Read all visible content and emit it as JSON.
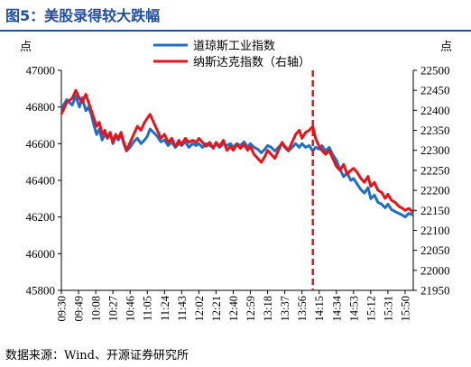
{
  "title": "图5：美股录得较大跌幅",
  "source": "数据来源：Wind、开源证券研究所",
  "chart_data": {
    "type": "line",
    "left_axis_unit": "点",
    "right_axis_unit": "点",
    "left_ylim": [
      45800,
      47000
    ],
    "right_ylim": [
      21950,
      22500
    ],
    "left_ticks": [
      "47000",
      "46800",
      "46600",
      "46400",
      "46200",
      "46000",
      "45800"
    ],
    "left_tick_values": [
      47000,
      46800,
      46600,
      46400,
      46200,
      46000,
      45800
    ],
    "right_ticks": [
      "22500",
      "22450",
      "22400",
      "22350",
      "22300",
      "22250",
      "22200",
      "22150",
      "22100",
      "22050",
      "22000",
      "21950"
    ],
    "right_tick_values": [
      22500,
      22450,
      22400,
      22350,
      22300,
      22250,
      22200,
      22150,
      22100,
      22050,
      22000,
      21950
    ],
    "x_tick_labels": [
      "09:30",
      "09:49",
      "10:08",
      "10:27",
      "10:46",
      "11:05",
      "11:24",
      "11:43",
      "12:02",
      "12:21",
      "12:40",
      "12:59",
      "13:18",
      "13:37",
      "13:56",
      "14:15",
      "14:34",
      "14:53",
      "15:12",
      "15:31",
      "15:50"
    ],
    "x_range": [
      "09:30",
      "15:59"
    ],
    "marker_time": "14:08",
    "series": [
      {
        "name": "道琼斯工业指数",
        "axis": "left",
        "color": "#1F6FC5",
        "points": [
          [
            "09:30",
            46790
          ],
          [
            "09:36",
            46840
          ],
          [
            "09:42",
            46810
          ],
          [
            "09:46",
            46860
          ],
          [
            "09:50",
            46800
          ],
          [
            "09:53",
            46850
          ],
          [
            "09:57",
            46780
          ],
          [
            "10:00",
            46800
          ],
          [
            "10:03",
            46760
          ],
          [
            "10:06",
            46700
          ],
          [
            "10:09",
            46650
          ],
          [
            "10:12",
            46680
          ],
          [
            "10:15",
            46620
          ],
          [
            "10:18",
            46650
          ],
          [
            "10:21",
            46630
          ],
          [
            "10:24",
            46660
          ],
          [
            "10:27",
            46600
          ],
          [
            "10:30",
            46640
          ],
          [
            "10:33",
            46620
          ],
          [
            "10:36",
            46650
          ],
          [
            "10:39",
            46600
          ],
          [
            "10:42",
            46560
          ],
          [
            "10:46",
            46580
          ],
          [
            "10:50",
            46610
          ],
          [
            "10:54",
            46630
          ],
          [
            "10:58",
            46600
          ],
          [
            "11:02",
            46620
          ],
          [
            "11:05",
            46640
          ],
          [
            "11:08",
            46680
          ],
          [
            "11:12",
            46660
          ],
          [
            "11:16",
            46640
          ],
          [
            "11:20",
            46610
          ],
          [
            "11:24",
            46620
          ],
          [
            "11:28",
            46590
          ],
          [
            "11:32",
            46610
          ],
          [
            "11:36",
            46580
          ],
          [
            "11:40",
            46600
          ],
          [
            "11:43",
            46590
          ],
          [
            "11:47",
            46610
          ],
          [
            "11:51",
            46580
          ],
          [
            "11:55",
            46600
          ],
          [
            "11:59",
            46590
          ],
          [
            "12:02",
            46600
          ],
          [
            "12:06",
            46580
          ],
          [
            "12:10",
            46600
          ],
          [
            "12:14",
            46590
          ],
          [
            "12:18",
            46580
          ],
          [
            "12:21",
            46600
          ],
          [
            "12:25",
            46580
          ],
          [
            "12:29",
            46600
          ],
          [
            "12:33",
            46590
          ],
          [
            "12:37",
            46600
          ],
          [
            "12:40",
            46580
          ],
          [
            "12:44",
            46600
          ],
          [
            "12:48",
            46590
          ],
          [
            "12:52",
            46610
          ],
          [
            "12:56",
            46580
          ],
          [
            "12:59",
            46600
          ],
          [
            "13:03",
            46580
          ],
          [
            "13:07",
            46570
          ],
          [
            "13:11",
            46550
          ],
          [
            "13:15",
            46570
          ],
          [
            "13:18",
            46590
          ],
          [
            "13:22",
            46580
          ],
          [
            "13:26",
            46560
          ],
          [
            "13:30",
            46580
          ],
          [
            "13:34",
            46600
          ],
          [
            "13:37",
            46580
          ],
          [
            "13:41",
            46560
          ],
          [
            "13:45",
            46580
          ],
          [
            "13:49",
            46600
          ],
          [
            "13:53",
            46580
          ],
          [
            "13:56",
            46600
          ],
          [
            "14:00",
            46580
          ],
          [
            "14:04",
            46590
          ],
          [
            "14:08",
            46560
          ],
          [
            "14:11",
            46580
          ],
          [
            "14:15",
            46570
          ],
          [
            "14:18",
            46590
          ],
          [
            "14:22",
            46560
          ],
          [
            "14:26",
            46580
          ],
          [
            "14:30",
            46540
          ],
          [
            "14:34",
            46510
          ],
          [
            "14:38",
            46460
          ],
          [
            "14:42",
            46420
          ],
          [
            "14:46",
            46440
          ],
          [
            "14:50",
            46400
          ],
          [
            "14:53",
            46410
          ],
          [
            "14:57",
            46380
          ],
          [
            "15:01",
            46350
          ],
          [
            "15:05",
            46330
          ],
          [
            "15:09",
            46360
          ],
          [
            "15:12",
            46300
          ],
          [
            "15:16",
            46320
          ],
          [
            "15:20",
            46280
          ],
          [
            "15:24",
            46270
          ],
          [
            "15:28",
            46250
          ],
          [
            "15:31",
            46270
          ],
          [
            "15:35",
            46240
          ],
          [
            "15:39",
            46230
          ],
          [
            "15:43",
            46220
          ],
          [
            "15:47",
            46210
          ],
          [
            "15:50",
            46200
          ],
          [
            "15:54",
            46220
          ],
          [
            "15:59",
            46210
          ]
        ]
      },
      {
        "name": "纳斯达克指数（右轴）",
        "axis": "right",
        "color": "#E8141B",
        "points": [
          [
            "09:30",
            22390
          ],
          [
            "09:36",
            22420
          ],
          [
            "09:42",
            22430
          ],
          [
            "09:46",
            22450
          ],
          [
            "09:50",
            22430
          ],
          [
            "09:53",
            22420
          ],
          [
            "09:57",
            22440
          ],
          [
            "10:00",
            22420
          ],
          [
            "10:03",
            22400
          ],
          [
            "10:06",
            22380
          ],
          [
            "10:09",
            22360
          ],
          [
            "10:12",
            22370
          ],
          [
            "10:15",
            22340
          ],
          [
            "10:18",
            22350
          ],
          [
            "10:21",
            22330
          ],
          [
            "10:24",
            22345
          ],
          [
            "10:27",
            22320
          ],
          [
            "10:30",
            22340
          ],
          [
            "10:33",
            22330
          ],
          [
            "10:36",
            22345
          ],
          [
            "10:39",
            22320
          ],
          [
            "10:42",
            22300
          ],
          [
            "10:46",
            22320
          ],
          [
            "10:50",
            22340
          ],
          [
            "10:54",
            22360
          ],
          [
            "10:58",
            22350
          ],
          [
            "11:02",
            22370
          ],
          [
            "11:05",
            22380
          ],
          [
            "11:08",
            22390
          ],
          [
            "11:12",
            22370
          ],
          [
            "11:16",
            22350
          ],
          [
            "11:20",
            22330
          ],
          [
            "11:24",
            22340
          ],
          [
            "11:28",
            22320
          ],
          [
            "11:32",
            22330
          ],
          [
            "11:36",
            22310
          ],
          [
            "11:40",
            22325
          ],
          [
            "11:43",
            22315
          ],
          [
            "11:47",
            22330
          ],
          [
            "11:51",
            22320
          ],
          [
            "11:55",
            22325
          ],
          [
            "11:59",
            22320
          ],
          [
            "12:02",
            22330
          ],
          [
            "12:06",
            22320
          ],
          [
            "12:10",
            22310
          ],
          [
            "12:14",
            22320
          ],
          [
            "12:18",
            22305
          ],
          [
            "12:21",
            22320
          ],
          [
            "12:25",
            22310
          ],
          [
            "12:29",
            22325
          ],
          [
            "12:33",
            22300
          ],
          [
            "12:37",
            22310
          ],
          [
            "12:40",
            22300
          ],
          [
            "12:44",
            22315
          ],
          [
            "12:48",
            22305
          ],
          [
            "12:52",
            22315
          ],
          [
            "12:56",
            22300
          ],
          [
            "12:59",
            22310
          ],
          [
            "13:03",
            22290
          ],
          [
            "13:07",
            22280
          ],
          [
            "13:11",
            22270
          ],
          [
            "13:15",
            22285
          ],
          [
            "13:18",
            22300
          ],
          [
            "13:22",
            22290
          ],
          [
            "13:26",
            22280
          ],
          [
            "13:30",
            22300
          ],
          [
            "13:34",
            22320
          ],
          [
            "13:37",
            22310
          ],
          [
            "13:41",
            22300
          ],
          [
            "13:45",
            22320
          ],
          [
            "13:49",
            22340
          ],
          [
            "13:53",
            22350
          ],
          [
            "13:56",
            22330
          ],
          [
            "14:00",
            22345
          ],
          [
            "14:04",
            22350
          ],
          [
            "14:08",
            22360
          ],
          [
            "14:11",
            22330
          ],
          [
            "14:15",
            22310
          ],
          [
            "14:18",
            22300
          ],
          [
            "14:22",
            22290
          ],
          [
            "14:26",
            22300
          ],
          [
            "14:30",
            22280
          ],
          [
            "14:34",
            22260
          ],
          [
            "14:38",
            22250
          ],
          [
            "14:42",
            22265
          ],
          [
            "14:46",
            22240
          ],
          [
            "14:50",
            22250
          ],
          [
            "14:53",
            22255
          ],
          [
            "14:57",
            22245
          ],
          [
            "15:01",
            22230
          ],
          [
            "15:05",
            22220
          ],
          [
            "15:09",
            22235
          ],
          [
            "15:12",
            22210
          ],
          [
            "15:16",
            22220
          ],
          [
            "15:20",
            22200
          ],
          [
            "15:24",
            22195
          ],
          [
            "15:28",
            22180
          ],
          [
            "15:31",
            22190
          ],
          [
            "15:35",
            22175
          ],
          [
            "15:39",
            22170
          ],
          [
            "15:43",
            22160
          ],
          [
            "15:47",
            22155
          ],
          [
            "15:50",
            22150
          ],
          [
            "15:54",
            22155
          ],
          [
            "15:59",
            22145
          ]
        ]
      }
    ],
    "legend_position": "top-center",
    "grid": false
  }
}
